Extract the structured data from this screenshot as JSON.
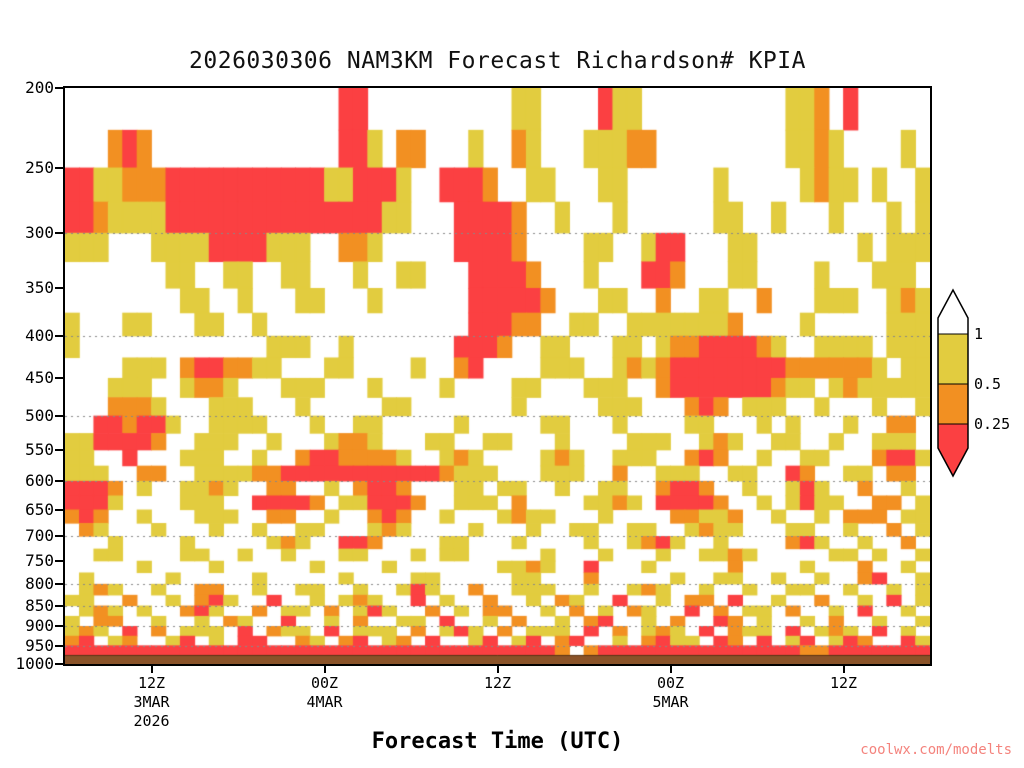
{
  "page": {
    "watermark": "coolwx.com/modelts",
    "watermark_color": "#f4837d"
  },
  "chart_data": {
    "type": "heatmap",
    "title": "2026030306 NAM3KM Forecast Richardson# KPIA",
    "xlabel": "Forecast Time (UTC)",
    "ylabel": "",
    "y_axis": {
      "unit": "hPa",
      "scale": "log",
      "range": [
        200,
        1000
      ],
      "ticks": [
        200,
        250,
        300,
        350,
        400,
        450,
        500,
        550,
        600,
        650,
        700,
        750,
        800,
        850,
        900,
        950,
        1000
      ],
      "gridlines": [
        300,
        400,
        500,
        600,
        700,
        800,
        850,
        900,
        950
      ]
    },
    "x_axis": {
      "range_hours": 60,
      "ticks": [
        {
          "hour": 6,
          "lines": [
            "12Z",
            "3MAR",
            "2026"
          ]
        },
        {
          "hour": 18,
          "lines": [
            "00Z",
            "4MAR"
          ]
        },
        {
          "hour": 30,
          "lines": [
            "12Z"
          ]
        },
        {
          "hour": 42,
          "lines": [
            "00Z",
            "5MAR"
          ]
        },
        {
          "hour": 54,
          "lines": [
            "12Z"
          ]
        }
      ]
    },
    "legend": {
      "tick_labels": [
        "1",
        "0.5",
        "0.25"
      ],
      "segments": [
        {
          "range": "Ri > 1",
          "color": "#ffffff"
        },
        {
          "range": "0.5 < Ri <= 1",
          "color": "#e2cc3f"
        },
        {
          "range": "0.25 < Ri <= 0.5",
          "color": "#f29022"
        },
        {
          "range": "Ri <= 0.25",
          "color": "#fb4042"
        }
      ]
    },
    "colors": {
      "white": "#ffffff",
      "yellow": "#e2cc3f",
      "orange": "#f29022",
      "red": "#fb4042",
      "terrain": "#8a5329",
      "terrain_edge": "#5a3414",
      "gridline": "#888888"
    },
    "levels_start_hpa": 200,
    "level_step_hpa": 25,
    "terrain_top_hpa": 975,
    "cell_legend": {
      ".": "white Ri>1",
      "y": "yellow 0.5-1",
      "o": "orange 0.25-0.5",
      "r": "red <0.25"
    },
    "grid": [
      "...................rr..........yy....ryy..........yyo.r.....",
      "...oro.............rry.oo...y..oy...yyyoo.........yyoy....y.",
      "rryyooorrrrrrrrrrryyrrry..rrro..yy...yy......y.....yoyy.y..yy",
      "rroyyyyrrrrrrrrrrrrrrryy...rrrro..y...y......yy..y...y...y.yy",
      "yyy...yyyyrrrryyy..ooy.....rrrro....yy..yrr...yy.......y.yyy",
      ".......yy..yy..yy...y..yy...rrrro...y...rro...yy....y...yyy.",
      "........yy..y...yy...y......rrrrro...yy..o..yy..o...yyy..yoy",
      "y...yy...yy..y..............rrroo..yy..yyyyyyyo....y.....yyyy",
      "y.............yyy..y.......rrro..yy...yy.yoorrrroy..yyyy.yyy",
      "....yyy.orrooyy...yy....y..or....yyy..yoyorrrrrrrrooooooy.yy",
      "...yyy..yooy...yyy...y....y....yy...yyy..orrrrrrroyy.yoyyyyy",
      "...oooy...yyy...y.....yy.......y.....yyy...oro.yyy..y...y..y",
      "..rrorry..yyyy...y..yy.....y.....yy...y....yy...y.y...y..oo.",
      "yyrrrro..yyy..y...yooy...yy..yy...y....yyy..yoy..yy..y..yyy.",
      "yy..r...yyy..y..orrooooy..yoy....yoy..yyy..oro..y..yy...orry",
      "yyy..oo..yyyyoorrrrrrrrrrroyyy...yyy..o..yyy..yy..ro..yy.oo.",
      "rrro.y..yyoy..oo..y.orro...yy.yy..y..yy..orro..y..yry..o..y.",
      "rrry....yyy..rrrro.yyrrro..yyy.o....yyoy.rrrro..y.yryy..oo.y",
      "oro..y...yyy..oo..y..oro..y...yoyy...y....ooyyo..y..y.ooo.yy",
      ".oy...y...y..y..yy...yoy....y...y..yy..yy..yoyy...yy..y..o.y",
      "...y....y.....yoy..rro....yy...y....y..yory..y....ory..y..o.",
      "..yy....yy..y..y...yy...y.yy.....y...y...y..yyoy.....yy.y..y",
      ".....y....y......y....y.......yyoy..r...y.....o....y...o..y.",
      ".y.....y.....y.....y....yy.....yy...o.....y..yy..y..y..or..y",
      ".yoy..y..oo..y..yy..y..yry..o..yyy..y..yoy..y..y..yy..y..y.y",
      "yy..o..y.ory..r..y.yoy..r.y..o..y.oy..r..y.oo.r..y..o..y.r.y",
      ".yoy.y..ory..o.yy.o.yry..o.y.oo..y.o.y.oy..r.o.yy.o..y.r..y.",
      "y.oo..y..y.oy..r..y.o..yy.r..y.o..y.or..y.o..ro.y..y.o..y..y",
      "yoy.r.o.yyy.r.oyy.r.yyy.o.yry.o.yyy.r.o.yoy.r.oyy.r.yoy.r.y.",
      "or.yo..yr.y.rr..oy.or.yo.r..yr.yr.or..y.oryy.ro.r.yr.yro..ry",
      "rrrrrrrrrrrrrrrrrrrrrrrrrrrrrrrrrro.orrrrrrrrrrrrrroorrrrrrrr"
    ]
  }
}
